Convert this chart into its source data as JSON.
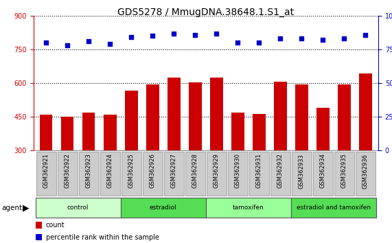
{
  "title": "GDS5278 / MmugDNA.38648.1.S1_at",
  "samples": [
    "GSM362921",
    "GSM362922",
    "GSM362923",
    "GSM362924",
    "GSM362925",
    "GSM362926",
    "GSM362927",
    "GSM362928",
    "GSM362929",
    "GSM362930",
    "GSM362931",
    "GSM362932",
    "GSM362933",
    "GSM362934",
    "GSM362935",
    "GSM362936"
  ],
  "counts": [
    460,
    450,
    470,
    460,
    568,
    595,
    625,
    605,
    625,
    468,
    462,
    608,
    595,
    490,
    595,
    645
  ],
  "percentile_ranks": [
    80,
    78,
    81,
    79,
    84,
    85,
    87,
    86,
    87,
    80,
    80,
    83,
    83,
    82,
    83,
    86
  ],
  "ylim_left": [
    300,
    900
  ],
  "ylim_right": [
    0,
    100
  ],
  "yticks_left": [
    300,
    450,
    600,
    750,
    900
  ],
  "yticks_right": [
    0,
    25,
    50,
    75,
    100
  ],
  "bar_color": "#cc0000",
  "dot_color": "#0000cc",
  "background_color": "#ffffff",
  "groups": [
    {
      "label": "control",
      "start": 0,
      "end": 3,
      "color": "#ccffcc"
    },
    {
      "label": "estradiol",
      "start": 4,
      "end": 7,
      "color": "#55dd55"
    },
    {
      "label": "tamoxifen",
      "start": 8,
      "end": 11,
      "color": "#99ff99"
    },
    {
      "label": "estradiol and tamoxifen",
      "start": 12,
      "end": 15,
      "color": "#55dd55"
    }
  ],
  "tick_label_fontsize": 6.0,
  "title_fontsize": 10,
  "legend_fontsize": 7,
  "xlabel_color_left": "#cc0000",
  "xlabel_color_right": "#0000cc",
  "xtick_bg": "#cccccc",
  "xtick_box_edge": "#999999"
}
